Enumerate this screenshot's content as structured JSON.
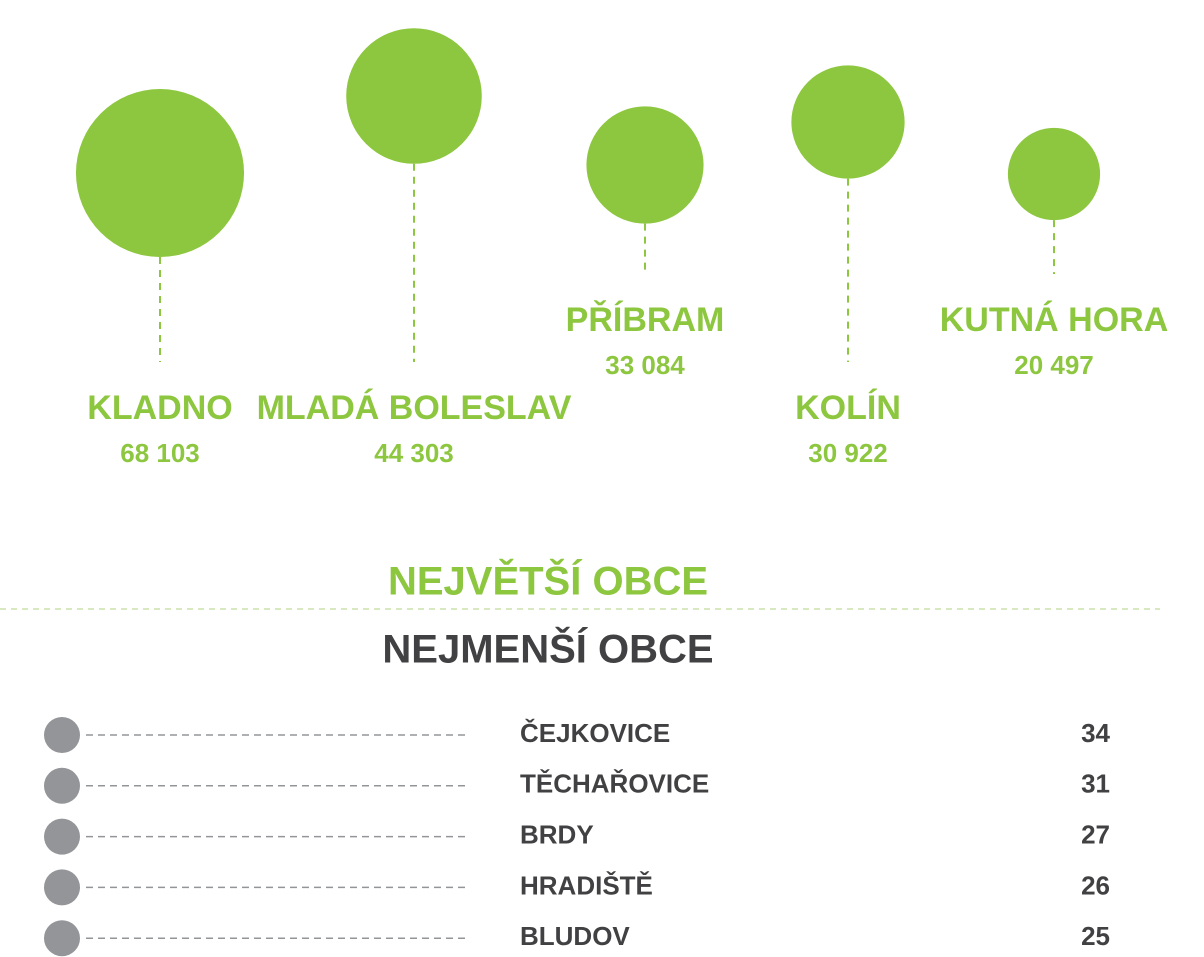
{
  "largest": {
    "title": "NEJVĚTŠÍ OBCE",
    "items": [
      {
        "name": "KLADNO",
        "population": 68103,
        "label": "68 103"
      },
      {
        "name": "MLADÁ BOLESLAV",
        "population": 44303,
        "label": "44 303"
      },
      {
        "name": "PŘÍBRAM",
        "population": 33084,
        "label": "33 084"
      },
      {
        "name": "KOLÍN",
        "population": 30922,
        "label": "30 922"
      },
      {
        "name": "KUTNÁ HORA",
        "population": 20497,
        "label": "20 497"
      }
    ]
  },
  "smallest": {
    "title": "NEJMENŠÍ OBCE",
    "items": [
      {
        "name": "ČEJKOVICE",
        "population": 34
      },
      {
        "name": "TĚCHAŘOVICE",
        "population": 31
      },
      {
        "name": "BRDY",
        "population": 27
      },
      {
        "name": "HRADIŠTĚ",
        "population": 26
      },
      {
        "name": "BLUDOV",
        "population": 25
      }
    ]
  }
}
